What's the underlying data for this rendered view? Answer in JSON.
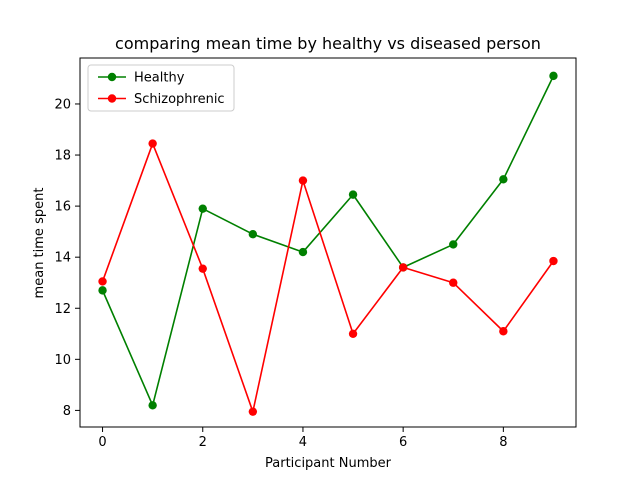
{
  "chart_data": {
    "type": "line",
    "title": "comparing mean time by healthy vs diseased person",
    "xlabel": "Participant Number",
    "ylabel": "mean time spent",
    "x": [
      0,
      1,
      2,
      3,
      4,
      5,
      6,
      7,
      8,
      9
    ],
    "xlim": [
      -0.45,
      9.45
    ],
    "ylim": [
      7.35,
      21.8
    ],
    "xticks": [
      0,
      2,
      4,
      6,
      8
    ],
    "yticks": [
      8,
      10,
      12,
      14,
      16,
      18,
      20
    ],
    "grid": false,
    "legend_position": "top-left",
    "series": [
      {
        "name": "Healthy",
        "color": "#008000",
        "marker": "circle",
        "values": [
          12.7,
          8.2,
          15.9,
          14.9,
          14.2,
          16.45,
          13.6,
          14.5,
          17.05,
          21.1
        ]
      },
      {
        "name": "Schizophrenic",
        "color": "#ff0000",
        "marker": "circle",
        "values": [
          13.05,
          18.45,
          13.55,
          7.95,
          17.0,
          11.0,
          13.6,
          13.0,
          11.1,
          13.85
        ]
      }
    ]
  }
}
